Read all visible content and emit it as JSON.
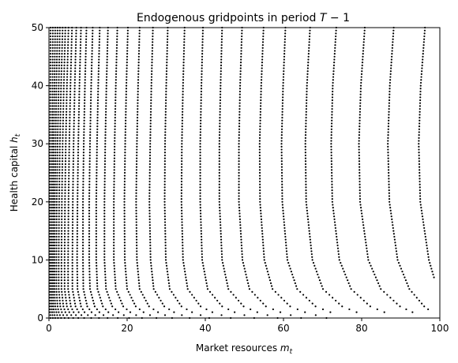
{
  "chart_data": {
    "type": "scatter",
    "title": {
      "prefix": "Endogenous gridpoints in period ",
      "math": "T",
      "suffix": " − 1"
    },
    "xlabel": {
      "text": "Market resources ",
      "math": "m",
      "sub": "t"
    },
    "ylabel": {
      "text": "Health capital ",
      "math": "h",
      "sub": "t"
    },
    "xlim": [
      0,
      100
    ],
    "ylim": [
      0,
      50
    ],
    "x_ticks": [
      "0",
      "20",
      "40",
      "60",
      "80",
      "100"
    ],
    "y_ticks": [
      "0",
      "10",
      "20",
      "30",
      "40",
      "50"
    ],
    "grid": false,
    "legend": "none",
    "marker_color": "#000000",
    "series_description": "Each series is one curve of gridpoints, listed as anchor points (x at given h); points are dense along each curve.",
    "curves": [
      {
        "h": [
          0,
          1,
          2,
          5,
          10,
          20,
          30,
          40,
          50
        ],
        "x": [
          0.4,
          0.3,
          0.25,
          0.2,
          0.2,
          0.25,
          0.3,
          0.35,
          0.4
        ]
      },
      {
        "h": [
          0,
          1,
          2,
          5,
          10,
          20,
          30,
          40,
          50
        ],
        "x": [
          1.0,
          0.8,
          0.7,
          0.6,
          0.6,
          0.7,
          0.8,
          0.9,
          1.0
        ]
      },
      {
        "h": [
          0,
          1,
          2,
          5,
          10,
          20,
          30,
          40,
          50
        ],
        "x": [
          1.6,
          1.3,
          1.1,
          1.0,
          1.0,
          1.1,
          1.2,
          1.4,
          1.6
        ]
      },
      {
        "h": [
          0,
          1,
          2,
          5,
          10,
          20,
          30,
          40,
          50
        ],
        "x": [
          2.3,
          1.9,
          1.6,
          1.4,
          1.4,
          1.5,
          1.7,
          1.9,
          2.2
        ]
      },
      {
        "h": [
          0,
          1,
          2,
          5,
          10,
          20,
          30,
          40,
          50
        ],
        "x": [
          3.1,
          2.5,
          2.2,
          1.9,
          1.9,
          2.0,
          2.2,
          2.5,
          2.8
        ]
      },
      {
        "h": [
          0,
          1,
          2,
          5,
          10,
          20,
          30,
          40,
          50
        ],
        "x": [
          4.0,
          3.3,
          2.9,
          2.5,
          2.5,
          2.6,
          2.8,
          3.1,
          3.5
        ]
      },
      {
        "h": [
          0,
          1,
          2,
          5,
          10,
          20,
          30,
          40,
          50
        ],
        "x": [
          5.0,
          4.2,
          3.7,
          3.2,
          3.2,
          3.3,
          3.5,
          3.8,
          4.2
        ]
      },
      {
        "h": [
          0,
          1,
          2,
          5,
          10,
          20,
          30,
          40,
          50
        ],
        "x": [
          6.2,
          5.2,
          4.6,
          4.0,
          4.0,
          4.1,
          4.3,
          4.6,
          5.0
        ]
      },
      {
        "h": [
          0,
          1,
          2,
          5,
          10,
          20,
          30,
          40,
          50
        ],
        "x": [
          7.5,
          6.3,
          5.6,
          4.9,
          4.9,
          5.0,
          5.2,
          5.5,
          5.9
        ]
      },
      {
        "h": [
          0,
          1,
          2,
          5,
          10,
          20,
          30,
          40,
          50
        ],
        "x": [
          9.0,
          7.6,
          6.8,
          6.0,
          6.0,
          6.1,
          6.3,
          6.6,
          7.0
        ]
      },
      {
        "h": [
          0,
          1,
          2,
          5,
          10,
          20,
          30,
          40,
          50
        ],
        "x": [
          10.8,
          9.1,
          8.2,
          7.3,
          7.2,
          7.3,
          7.5,
          7.8,
          8.2
        ]
      },
      {
        "h": [
          0,
          1,
          2,
          5,
          10,
          20,
          30,
          40,
          50
        ],
        "x": [
          12.8,
          10.9,
          9.8,
          8.8,
          8.7,
          8.7,
          8.9,
          9.2,
          9.6
        ]
      },
      {
        "h": [
          0,
          1,
          2,
          5,
          10,
          20,
          30,
          40,
          50
        ],
        "x": [
          15.0,
          12.9,
          11.7,
          10.5,
          10.3,
          10.3,
          10.5,
          10.8,
          11.2
        ]
      },
      {
        "h": [
          0,
          1,
          2,
          5,
          10,
          20,
          30,
          40,
          50
        ],
        "x": [
          17.6,
          15.2,
          13.8,
          12.4,
          12.1,
          12.1,
          12.3,
          12.6,
          13.0
        ]
      },
      {
        "h": [
          0,
          1,
          2,
          5,
          10,
          20,
          30,
          40,
          50
        ],
        "x": [
          20.5,
          17.8,
          16.2,
          14.6,
          14.2,
          14.2,
          14.4,
          14.7,
          15.1
        ]
      },
      {
        "h": [
          0,
          1,
          2,
          5,
          10,
          20,
          30,
          40,
          50
        ],
        "x": [
          23.8,
          20.8,
          19.0,
          17.1,
          16.6,
          16.6,
          16.8,
          17.1,
          17.5
        ]
      },
      {
        "h": [
          0,
          1,
          2,
          5,
          10,
          20,
          30,
          40,
          50
        ],
        "x": [
          27.5,
          24.2,
          22.2,
          20.0,
          19.4,
          19.3,
          19.5,
          19.8,
          20.2
        ]
      },
      {
        "h": [
          0,
          1,
          2,
          5,
          10,
          20,
          30,
          40,
          50
        ],
        "x": [
          31.5,
          27.9,
          25.6,
          23.2,
          22.5,
          22.3,
          22.5,
          22.8,
          23.2
        ]
      },
      {
        "h": [
          0,
          1,
          2,
          5,
          10,
          20,
          30,
          40,
          50
        ],
        "x": [
          36.0,
          32.0,
          29.5,
          26.8,
          26.0,
          25.7,
          25.9,
          26.2,
          26.6
        ]
      },
      {
        "h": [
          0,
          1,
          2,
          5,
          10,
          20,
          30,
          40,
          50
        ],
        "x": [
          41.0,
          36.6,
          33.9,
          30.9,
          29.9,
          29.6,
          29.7,
          30.0,
          30.4
        ]
      },
      {
        "h": [
          0,
          1,
          2,
          5,
          10,
          20,
          30,
          40,
          50
        ],
        "x": [
          46.5,
          41.8,
          38.8,
          35.5,
          34.3,
          33.9,
          34.0,
          34.3,
          34.7
        ]
      },
      {
        "h": [
          0,
          1,
          2,
          5,
          10,
          20,
          30,
          40,
          50
        ],
        "x": [
          52.5,
          47.5,
          44.3,
          40.6,
          39.2,
          38.7,
          38.7,
          39.0,
          39.4
        ]
      },
      {
        "h": [
          0,
          1,
          2,
          5,
          10,
          20,
          30,
          40,
          50
        ],
        "x": [
          58.5,
          53.3,
          49.8,
          45.9,
          44.3,
          43.6,
          43.6,
          43.9,
          44.3
        ]
      },
      {
        "h": [
          0,
          1,
          2,
          5,
          10,
          20,
          30,
          40,
          50
        ],
        "x": [
          64.5,
          59.2,
          55.5,
          51.3,
          49.5,
          48.6,
          48.6,
          48.9,
          49.4
        ]
      },
      {
        "h": [
          0,
          1,
          2,
          5,
          10,
          20,
          30,
          40,
          50
        ],
        "x": [
          71.0,
          65.5,
          61.7,
          57.2,
          55.1,
          54.0,
          53.9,
          54.3,
          54.9
        ]
      },
      {
        "h": [
          1,
          2,
          5,
          10,
          20,
          30,
          40,
          50
        ],
        "x": [
          72.0,
          68.2,
          63.5,
          61.0,
          59.7,
          59.5,
          59.9,
          60.5
        ]
      },
      {
        "h": [
          1,
          2,
          5,
          10,
          20,
          30,
          40,
          50
        ],
        "x": [
          78.7,
          75.0,
          70.1,
          67.4,
          65.8,
          65.6,
          66.0,
          66.8
        ]
      },
      {
        "h": [
          1,
          2,
          5,
          10,
          20,
          30,
          40,
          50
        ],
        "x": [
          85.8,
          82.2,
          77.3,
          74.3,
          72.5,
          72.2,
          72.6,
          73.5
        ]
      },
      {
        "h": [
          1,
          2,
          5,
          10,
          20,
          30,
          40,
          50
        ],
        "x": [
          93.0,
          89.8,
          84.9,
          81.7,
          79.6,
          79.3,
          79.8,
          80.8
        ]
      },
      {
        "h": [
          1.5,
          2,
          5,
          10,
          20,
          30,
          40,
          50
        ],
        "x": [
          97.0,
          96.0,
          92.2,
          89.2,
          87.1,
          86.7,
          87.2,
          88.2
        ]
      },
      {
        "h": [
          7,
          10,
          20,
          30,
          40,
          50
        ],
        "x": [
          98.5,
          97.2,
          95.0,
          94.6,
          95.1,
          96.2
        ]
      }
    ]
  }
}
